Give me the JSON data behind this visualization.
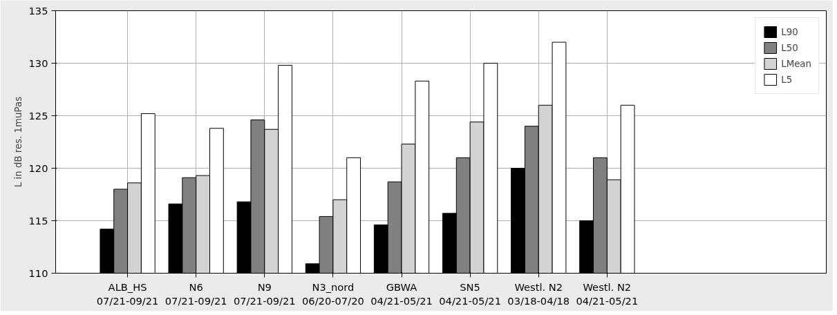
{
  "chart_data": {
    "type": "bar",
    "ylabel": "L in dB res. 1muPas",
    "categories": [
      "ALB_HS\n07/21-09/21",
      "N6\n07/21-09/21",
      "N9\n07/21-09/21",
      "N3_nord\n06/20-07/20",
      "GBWA\n04/21-05/21",
      "SN5\n04/21-05/21",
      "Westl. N2\n03/18-04/18",
      "Westl. N2\n04/21-05/21"
    ],
    "series": [
      {
        "name": "L90",
        "color": "#000000",
        "values": [
          114.2,
          116.6,
          116.8,
          110.9,
          114.6,
          115.7,
          120.0,
          115.0
        ]
      },
      {
        "name": "L50",
        "color": "#808080",
        "values": [
          118.0,
          119.1,
          124.6,
          115.4,
          118.7,
          121.0,
          124.0,
          121.0
        ]
      },
      {
        "name": "LMean",
        "color": "#d3d3d3",
        "values": [
          118.6,
          119.3,
          123.7,
          117.0,
          122.3,
          124.4,
          126.0,
          118.9
        ]
      },
      {
        "name": "L5",
        "color": "#ffffff",
        "values": [
          125.2,
          123.8,
          129.8,
          121.0,
          128.3,
          130.0,
          132.0,
          126.0
        ]
      }
    ],
    "ylim": [
      110,
      135
    ],
    "yticks": [
      110,
      115,
      120,
      125,
      130,
      135
    ],
    "grid": true,
    "legend": "top right"
  }
}
